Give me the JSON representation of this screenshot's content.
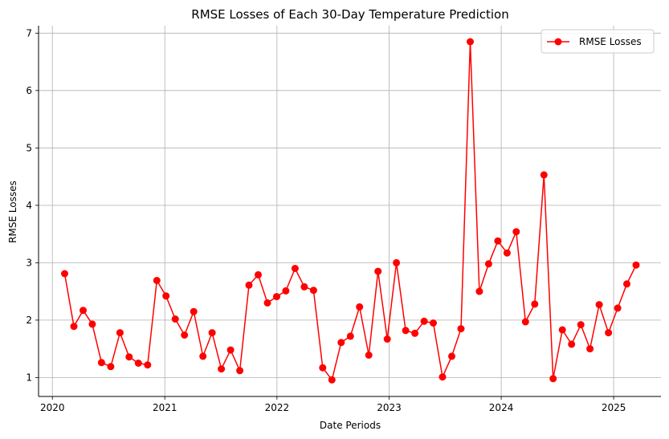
{
  "chart_data": {
    "type": "line",
    "title": "RMSE Losses of Each 30-Day Temperature Prediction",
    "xlabel": "Date Periods",
    "ylabel": "RMSE Losses",
    "x_tick_labels": [
      "2020",
      "2021",
      "2022",
      "2023",
      "2024",
      "2025"
    ],
    "y_ticks": [
      1,
      2,
      3,
      4,
      5,
      6,
      7
    ],
    "xlim": [
      "2019-11-17",
      "2025-06-04"
    ],
    "ylim": [
      0.67,
      7.13
    ],
    "grid": true,
    "legend_position": "top-right",
    "series": [
      {
        "name": "RMSE Losses",
        "color": "#ff0000",
        "marker": "circle",
        "x": [
          "2020-02-10",
          "2020-03-11",
          "2020-04-10",
          "2020-05-10",
          "2020-06-09",
          "2020-07-09",
          "2020-08-08",
          "2020-09-07",
          "2020-10-07",
          "2020-11-06",
          "2020-12-06",
          "2021-01-05",
          "2021-02-04",
          "2021-03-06",
          "2021-04-05",
          "2021-05-05",
          "2021-06-04",
          "2021-07-04",
          "2021-08-03",
          "2021-09-02",
          "2021-10-02",
          "2021-11-01",
          "2021-12-01",
          "2021-12-31",
          "2022-01-30",
          "2022-03-01",
          "2022-03-31",
          "2022-04-30",
          "2022-05-30",
          "2022-06-29",
          "2022-07-29",
          "2022-08-28",
          "2022-09-27",
          "2022-10-27",
          "2022-11-26",
          "2022-12-26",
          "2023-01-25",
          "2023-02-24",
          "2023-03-26",
          "2023-04-25",
          "2023-05-25",
          "2023-06-24",
          "2023-07-24",
          "2023-08-23",
          "2023-09-22",
          "2023-10-22",
          "2023-11-21",
          "2023-12-21",
          "2024-01-20",
          "2024-02-19",
          "2024-03-20",
          "2024-04-19",
          "2024-05-19",
          "2024-06-18",
          "2024-07-18",
          "2024-08-17",
          "2024-09-16",
          "2024-10-16",
          "2024-11-15",
          "2024-12-15",
          "2025-01-14",
          "2025-02-13",
          "2025-03-15"
        ],
        "values": [
          2.81,
          1.89,
          2.17,
          1.93,
          1.26,
          1.19,
          1.78,
          1.36,
          1.25,
          1.22,
          2.69,
          2.42,
          2.02,
          1.74,
          2.15,
          1.37,
          1.78,
          1.15,
          1.48,
          1.12,
          2.61,
          2.79,
          2.3,
          2.41,
          2.51,
          2.9,
          2.58,
          2.52,
          1.17,
          0.96,
          1.61,
          1.72,
          2.23,
          1.39,
          2.85,
          1.67,
          3.0,
          1.82,
          1.77,
          1.98,
          1.95,
          1.01,
          1.37,
          1.85,
          6.85,
          2.5,
          2.98,
          3.38,
          3.17,
          3.54,
          1.97,
          2.28,
          4.53,
          0.98,
          1.83,
          1.58,
          1.92,
          1.5,
          2.27,
          1.78,
          2.21,
          2.63,
          2.96
        ]
      }
    ]
  }
}
